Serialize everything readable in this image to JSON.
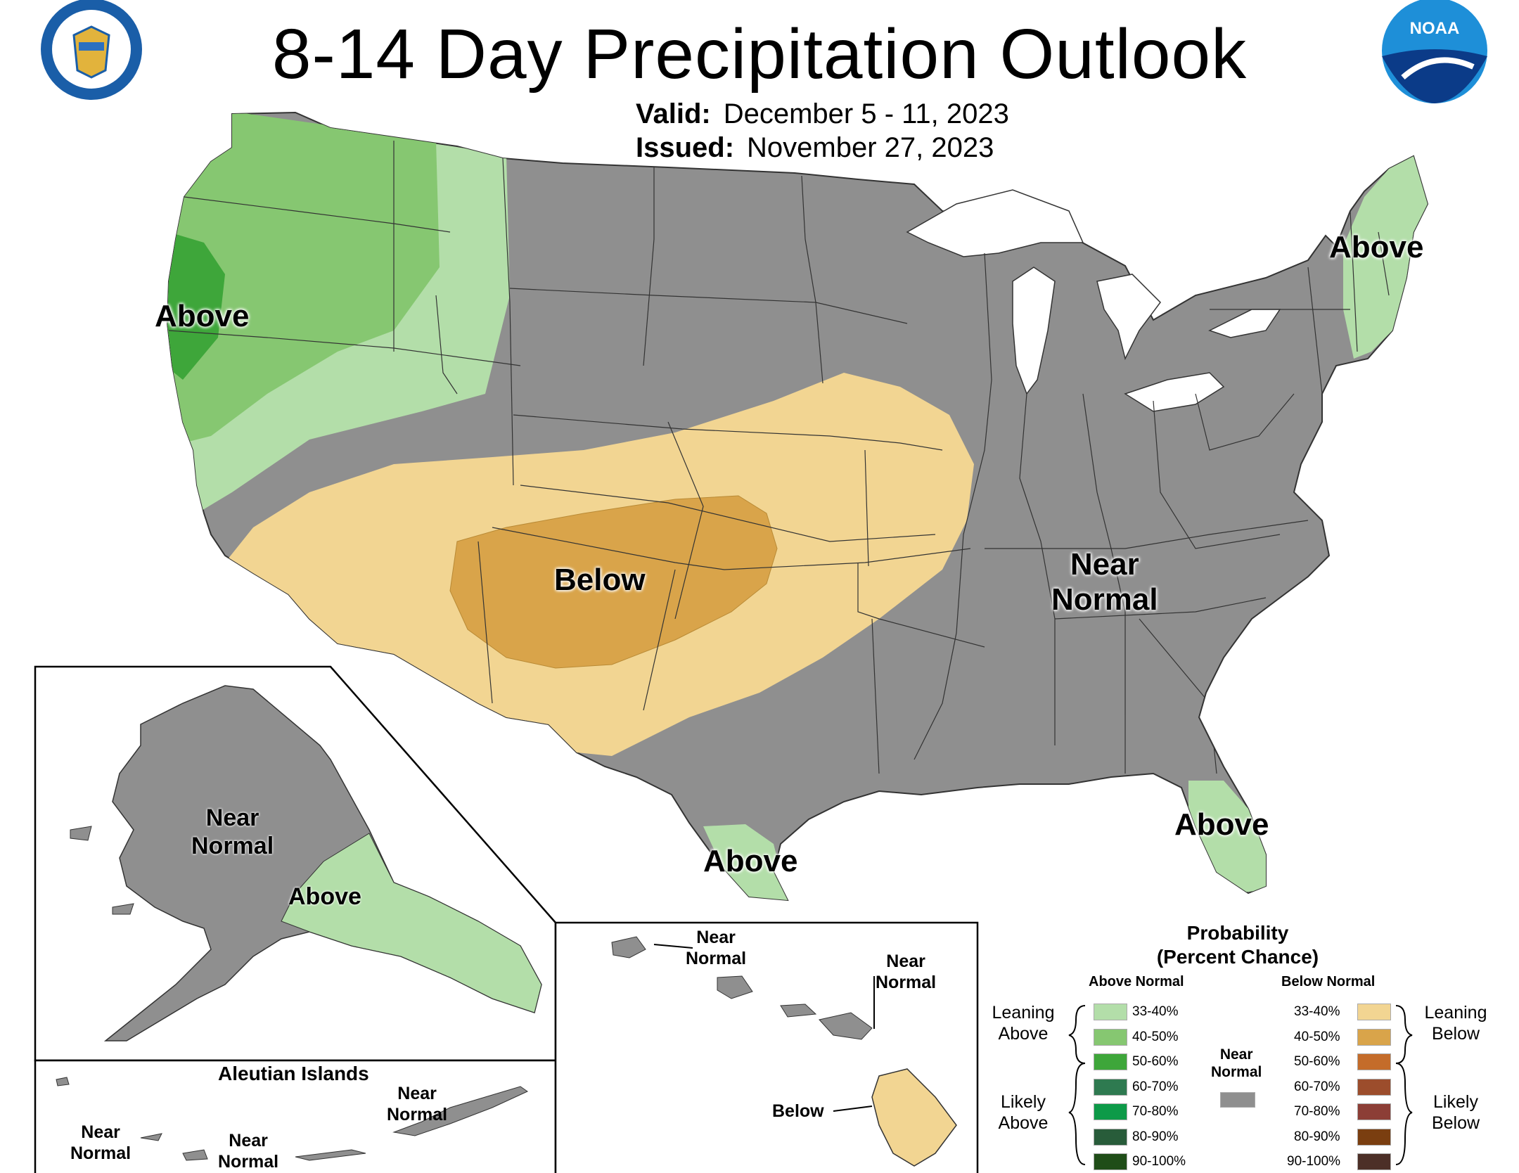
{
  "header": {
    "title": "8-14 Day Precipitation Outlook",
    "valid_label": "Valid:",
    "valid_value": "December 5 - 11, 2023",
    "issued_label": "Issued:",
    "issued_value": "November 27, 2023",
    "noaa_logo_text": "NOAA"
  },
  "colors": {
    "near_normal": "#8f8f8f",
    "above_33_40": "#b3dea9",
    "above_40_50": "#86c771",
    "above_50_60": "#3ea63a",
    "above_60_70": "#2e7a50",
    "above_70_80": "#0d9a48",
    "above_80_90": "#285c3a",
    "above_90_100": "#1f4d18",
    "below_33_40": "#f2d592",
    "below_40_50": "#d9a44a",
    "below_50_60": "#c46c2a",
    "below_60_70": "#9c4d2c",
    "below_70_80": "#8c3e36",
    "below_80_90": "#7a3e10",
    "below_90_100": "#4c2f27"
  },
  "map_labels": {
    "pacific_nw": "Above",
    "new_england": "Above",
    "southwest": "Below",
    "east_line1": "Near",
    "east_line2": "Normal",
    "south_texas": "Above",
    "florida": "Above"
  },
  "alaska": {
    "near_line1": "Near",
    "near_line2": "Normal",
    "above": "Above"
  },
  "aleutians": {
    "title": "Aleutian Islands",
    "labels": [
      {
        "line1": "Near",
        "line2": "Normal"
      },
      {
        "line1": "Near",
        "line2": "Normal"
      },
      {
        "line1": "Near",
        "line2": "Normal"
      }
    ]
  },
  "hawaii": {
    "kauai_line1": "Near",
    "kauai_line2": "Normal",
    "maui_line1": "Near",
    "maui_line2": "Normal",
    "big_island": "Below"
  },
  "legend": {
    "title_line1": "Probability",
    "title_line2": "(Percent Chance)",
    "above_header": "Above Normal",
    "below_header": "Below Normal",
    "near_line1": "Near",
    "near_line2": "Normal",
    "leaning_above_1": "Leaning",
    "leaning_above_2": "Above",
    "likely_above_1": "Likely",
    "likely_above_2": "Above",
    "leaning_below_1": "Leaning",
    "leaning_below_2": "Below",
    "likely_below_1": "Likely",
    "likely_below_2": "Below",
    "above_ranges": [
      "33-40%",
      "40-50%",
      "50-60%",
      "60-70%",
      "70-80%",
      "80-90%",
      "90-100%"
    ],
    "below_ranges": [
      "33-40%",
      "40-50%",
      "50-60%",
      "60-70%",
      "70-80%",
      "80-90%",
      "90-100%"
    ]
  }
}
